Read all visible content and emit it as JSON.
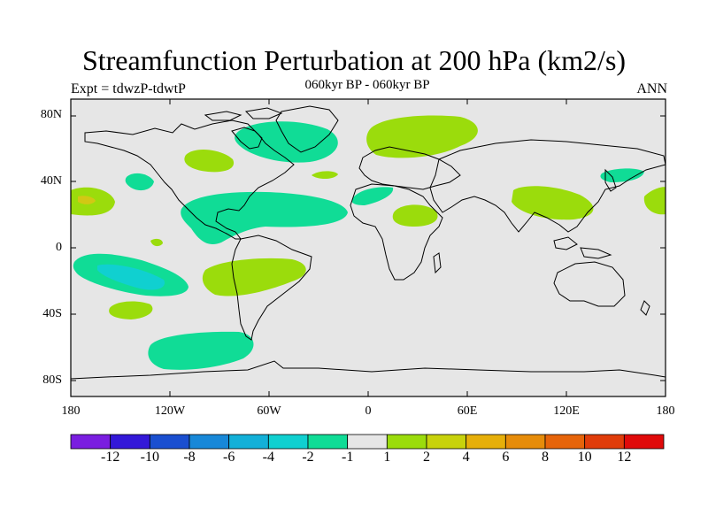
{
  "header": {
    "title": "Streamfunction Perturbation at 200 hPa (km2/s)",
    "left_subtitle": "Expt = tdwzP-tdwtP",
    "center_subtitle": "060kyr BP - 060kyr BP",
    "right_subtitle": "ANN"
  },
  "axes": {
    "lat_labels": [
      "80N",
      "40N",
      "0",
      "40S",
      "80S"
    ],
    "lon_labels": [
      "180",
      "120W",
      "60W",
      "0",
      "60E",
      "120E",
      "180"
    ]
  },
  "colorbar": {
    "labels": [
      "-12",
      "-10",
      "-8",
      "-6",
      "-4",
      "-2",
      "-1",
      "1",
      "2",
      "4",
      "6",
      "8",
      "10",
      "12"
    ],
    "colors": [
      "#7a1ee0",
      "#3318d8",
      "#1a4fd0",
      "#1888d8",
      "#13b0d8",
      "#10d0d0",
      "#10dc96",
      "#e6e6e6",
      "#9bdc0c",
      "#c8d20c",
      "#e6af0a",
      "#e68c0a",
      "#e6640a",
      "#e03c0a",
      "#e00a0a"
    ]
  },
  "map": {
    "background_color": "#e6e6e6",
    "coast_color": "#000000"
  }
}
